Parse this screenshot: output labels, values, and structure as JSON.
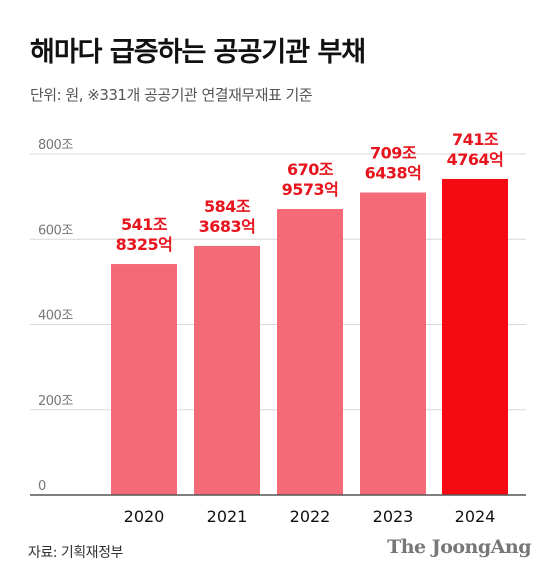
{
  "chart_data": {
    "type": "bar",
    "title": "해마다 급증하는 공공기관 부채",
    "subtitle": "단위: 원, ※331개 공공기관 연결재무재표 기준",
    "categories": [
      "2020",
      "2021",
      "2022",
      "2023",
      "2024"
    ],
    "values": [
      541.8325,
      584.3683,
      670.9573,
      709.6438,
      741.4764
    ],
    "data_labels": [
      [
        "541조",
        "8325억"
      ],
      [
        "584조",
        "3683억"
      ],
      [
        "670조",
        "9573억"
      ],
      [
        "709조",
        "6438억"
      ],
      [
        "741조",
        "4764억"
      ]
    ],
    "y_ticks": [
      {
        "value": 0,
        "label": "0"
      },
      {
        "value": 200,
        "label": "200조"
      },
      {
        "value": 400,
        "label": "400조"
      },
      {
        "value": 600,
        "label": "600조"
      },
      {
        "value": 800,
        "label": "800조"
      }
    ],
    "ylim": [
      0,
      800
    ],
    "grid": true,
    "colors": {
      "bar": "#f46b77",
      "bar_highlight": "#f50a14",
      "label": "#e8141d",
      "grid": "#d8d8d8",
      "axis": "#555555",
      "tick_text": "#777777",
      "x_text": "#111111"
    },
    "highlight_index": 4
  },
  "footer": {
    "source": "자료: 기획재정부",
    "brand": "The JoongAng"
  }
}
